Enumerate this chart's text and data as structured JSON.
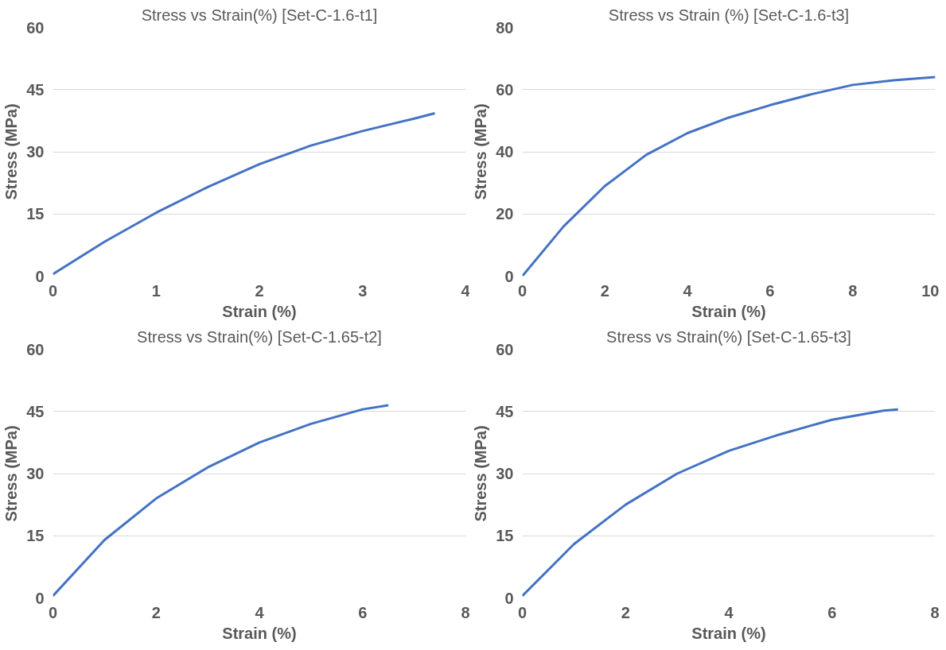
{
  "chart_data": [
    {
      "type": "line",
      "title": "Stress vs Strain(%) [Set-C-1.6-t1]",
      "xlabel": "Strain (%)",
      "ylabel": "Stress (MPa)",
      "xlim": [
        0,
        4
      ],
      "xticks": [
        0,
        1,
        2,
        3,
        4
      ],
      "ylim": [
        0,
        60
      ],
      "yticks": [
        0,
        15,
        30,
        45,
        60
      ],
      "grid": "y",
      "line_style": "solid",
      "series": [
        {
          "color": "#4472c4",
          "x": [
            0,
            0.5,
            1,
            1.5,
            2,
            2.5,
            3,
            3.5,
            3.7
          ],
          "values": [
            0.5,
            8.3,
            15.3,
            21.5,
            27,
            31.5,
            35,
            38,
            39.3
          ]
        }
      ]
    },
    {
      "type": "line",
      "title": "Stress vs Strain (%) [Set-C-1.6-t3]",
      "xlabel": "Strain (%)",
      "ylabel": "Stress (MPa)",
      "xlim": [
        0,
        10
      ],
      "xticks": [
        0,
        2,
        4,
        6,
        8,
        10
      ],
      "ylim": [
        0,
        80
      ],
      "yticks": [
        0,
        20,
        40,
        60,
        80
      ],
      "grid": "y",
      "line_style": "solid",
      "series": [
        {
          "color": "#4472c4",
          "x": [
            0,
            1,
            2,
            3,
            4,
            5,
            6,
            7,
            8,
            9,
            10
          ],
          "values": [
            0,
            16,
            29,
            39,
            46,
            51,
            55,
            58.5,
            61.5,
            63,
            64
          ]
        }
      ]
    },
    {
      "type": "line",
      "title": "Stress vs Strain(%) [Set-C-1.65-t2]",
      "xlabel": "Strain (%)",
      "ylabel": "Stress (MPa)",
      "xlim": [
        0,
        8
      ],
      "xticks": [
        0,
        2,
        4,
        6,
        8
      ],
      "ylim": [
        0,
        60
      ],
      "yticks": [
        0,
        15,
        30,
        45,
        60
      ],
      "grid": "y",
      "line_style": "solid",
      "series": [
        {
          "color": "#4472c4",
          "x": [
            0,
            1,
            2,
            3,
            4,
            5,
            6,
            6.5
          ],
          "values": [
            0.5,
            14,
            24,
            31.5,
            37.5,
            42,
            45.5,
            46.5
          ]
        }
      ]
    },
    {
      "type": "line",
      "title": "Stress vs Strain(%) [Set-C-1.65-t3]",
      "xlabel": "Strain (%)",
      "ylabel": "Stress (MPa)",
      "xlim": [
        0,
        8
      ],
      "xticks": [
        0,
        2,
        4,
        6,
        8
      ],
      "ylim": [
        0,
        60
      ],
      "yticks": [
        0,
        15,
        30,
        45,
        60
      ],
      "grid": "y",
      "line_style": "solid",
      "series": [
        {
          "color": "#4472c4",
          "x": [
            0,
            1,
            2,
            3,
            4,
            5,
            6,
            7,
            7.28
          ],
          "values": [
            0.5,
            13,
            22.5,
            30,
            35.5,
            39.5,
            43,
            45.2,
            45.5
          ]
        }
      ]
    }
  ]
}
